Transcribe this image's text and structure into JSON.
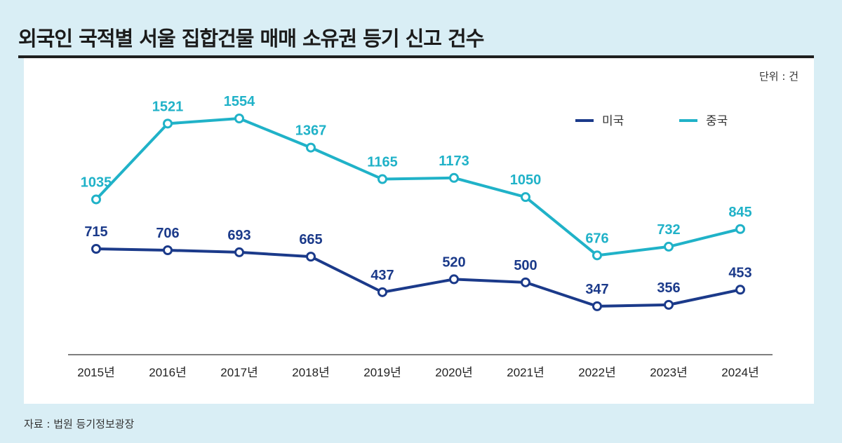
{
  "header": {
    "title": "외국인 국적별 서울 집합건물 매매 소유권 등기 신고 건수",
    "unit": "단위 : 건"
  },
  "footer": {
    "source": "자료 : 법원 등기정보광장"
  },
  "colors": {
    "us": "#1b3a8a",
    "china": "#20b2c8",
    "axis": "#333333"
  },
  "chart_data": {
    "type": "line",
    "title": "외국인 국적별 서울 집합건물 매매 소유권 등기 신고 건수",
    "xlabel": "",
    "ylabel": "",
    "unit": "건",
    "categories": [
      "2015년",
      "2016년",
      "2017년",
      "2018년",
      "2019년",
      "2020년",
      "2021년",
      "2022년",
      "2023년",
      "2024년"
    ],
    "series": [
      {
        "name": "미국",
        "values": [
          715,
          706,
          693,
          665,
          437,
          520,
          500,
          347,
          356,
          453
        ]
      },
      {
        "name": "중국",
        "values": [
          1035,
          1521,
          1554,
          1367,
          1165,
          1173,
          1050,
          676,
          732,
          845
        ]
      }
    ],
    "legend_position": "top-right",
    "grid": false,
    "y_axis_visible": false
  }
}
